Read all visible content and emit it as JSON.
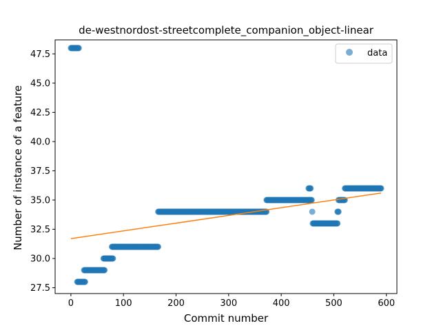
{
  "chart_data": {
    "type": "scatter",
    "title": "de-westnordost-streetcomplete_companion_object-linear",
    "xlabel": "Commit number",
    "ylabel": "Number of instance of a feature",
    "xlim": [
      -30,
      620
    ],
    "ylim": [
      27,
      48.7
    ],
    "x_ticks": [
      0,
      100,
      200,
      300,
      400,
      500,
      600
    ],
    "x_tick_labels": [
      "0",
      "100",
      "200",
      "300",
      "400",
      "500",
      "600"
    ],
    "y_ticks": [
      27.5,
      30.0,
      32.5,
      35.0,
      37.5,
      40.0,
      42.5,
      45.0,
      47.5
    ],
    "y_tick_labels": [
      "27.5",
      "30.0",
      "32.5",
      "35.0",
      "37.5",
      "40.0",
      "42.5",
      "45.0",
      "47.5"
    ],
    "legend": {
      "label": "data",
      "placement": "top-right"
    },
    "colors": {
      "scatter": "#1f77b4",
      "fit": "#ff7f0e"
    },
    "segments": [
      {
        "x_start": 0,
        "x_end": 15,
        "y": 48
      },
      {
        "x_start": 12,
        "x_end": 27,
        "y": 28
      },
      {
        "x_start": 25,
        "x_end": 64,
        "y": 29
      },
      {
        "x_start": 62,
        "x_end": 80,
        "y": 30
      },
      {
        "x_start": 78,
        "x_end": 166,
        "y": 31
      },
      {
        "x_start": 166,
        "x_end": 372,
        "y": 34
      },
      {
        "x_start": 372,
        "x_end": 458,
        "y": 35
      },
      {
        "x_start": 452,
        "x_end": 456,
        "y": 36
      },
      {
        "x_start": 460,
        "x_end": 507,
        "y": 33
      },
      {
        "x_start": 507,
        "x_end": 509,
        "y": 34
      },
      {
        "x_start": 509,
        "x_end": 521,
        "y": 35
      },
      {
        "x_start": 521,
        "x_end": 590,
        "y": 36
      }
    ],
    "points": [
      {
        "x": 459,
        "y": 34
      }
    ],
    "fit_line": {
      "x": [
        0,
        590
      ],
      "y": [
        31.7,
        35.6
      ]
    }
  }
}
